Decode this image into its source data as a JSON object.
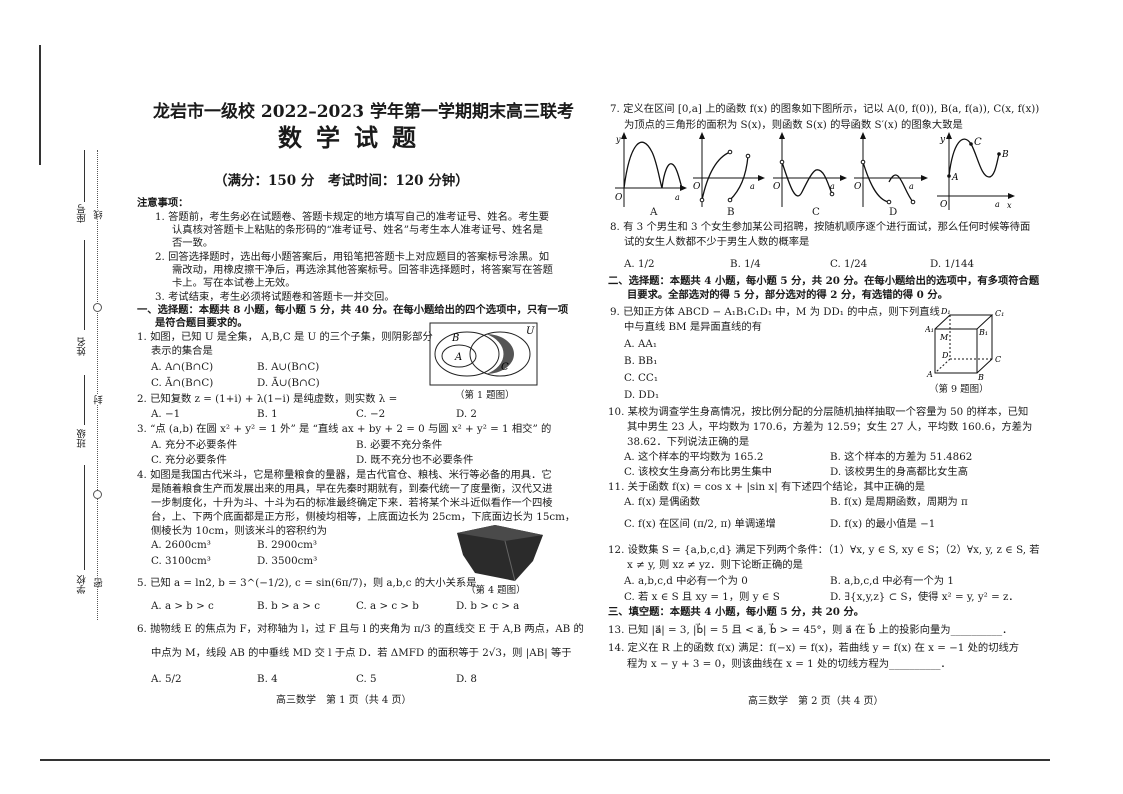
{
  "binding_margin": {
    "labels": [
      "座号",
      "线",
      "姓名",
      "封",
      "班级",
      "密",
      "学校"
    ]
  },
  "page1": {
    "title": "龙岩市一级校 2022–2023 学年第一学期期末高三联考",
    "subject": "数学试题",
    "info": "（满分：150 分　考试时间：120 分钟）",
    "notice_title": "注意事项：",
    "notices": [
      "1. 答题前，考生务必在试题卷、答题卡规定的地方填写自己的准考证号、姓名。考生要",
      "认真核对答题卡上粘贴的条形码的“准考证号、姓名”与考生本人准考证号、姓名是",
      "否一致。",
      "2. 回答选择题时，选出每小题答案后，用铅笔把答题卡上对应题目的答案标号涂黑。如",
      "需改动，用橡皮擦干净后，再选涂其他答案标号。回答非选择题时，将答案写在答题",
      "卡上。写在本试卷上无效。",
      "3. 考试结束，考生必须将试题卷和答题卡一并交回。"
    ],
    "section1": [
      "一、选择题：本题共 8 小题，每小题 5 分，共 40 分。在每小题给出的四个选项中，只有一项",
      "是符合题目要求的。"
    ],
    "q1": {
      "stem": [
        "1. 如图，已知 U 是全集， A,B,C 是 U 的三个子集，则阴影部分",
        "表示的集合是"
      ],
      "options": [
        "A.  A∩(B∩C)",
        "B.  A∪(B∩C)",
        "C.  Ā∩(B∩C)",
        "D.  Ā∪(B∩C)"
      ],
      "caption": "（第 1 题图）",
      "labels": [
        "U",
        "B",
        "A",
        "C"
      ]
    },
    "q2": {
      "stem": "2. 已知复数 z = (1+i) + λ(1−i) 是纯虚数，则实数 λ =",
      "options": [
        "A.  −1",
        "B.  1",
        "C.  −2",
        "D.  2"
      ]
    },
    "q3": {
      "stem": "3. “点 (a,b) 在圆 x² + y² = 1 外” 是 “直线 ax + by + 2 = 0 与圆 x² + y² = 1 相交” 的",
      "options": [
        "A.  充分不必要条件",
        "B.  必要不充分条件",
        "C.  充分必要条件",
        "D.  既不充分也不必要条件"
      ]
    },
    "q4": {
      "stem": [
        "4. 如图是我国古代米斗，它是称量粮食的量器，是古代官仓、粮栈、米行等必备的用具．它",
        "是随着粮食生产而发展出来的用具，早在先秦时期就有，到秦代统一了度量衡，汉代又进",
        "一步制度化，十升为斗、十斗为石的标准最终确定下来．若将某个米斗近似看作一个四棱",
        "台，上、下两个底面都是正方形，侧棱均相等，上底面边长为 25cm，下底面边长为 15cm，",
        "侧棱长为 10cm，则该米斗的容积约为"
      ],
      "options": [
        "A.  2600cm³",
        "B.  2900cm³",
        "C.  3100cm³",
        "D.  3500cm³"
      ],
      "caption": "（第 4 题图）"
    },
    "q5": {
      "stem": "5. 已知 a = ln2, b = 3^(−1/2), c = sin(6π/7)，则 a,b,c 的大小关系是",
      "options": [
        "A.  a > b > c",
        "B.  b > a > c",
        "C.  a > c > b",
        "D.  b > c > a"
      ]
    },
    "q6": {
      "stem": [
        "6. 抛物线 E 的焦点为 F，对称轴为 l，过 F 且与 l 的夹角为 π/3 的直线交 E 于 A,B 两点，AB 的",
        "中点为 M，线段 AB 的中垂线 MD 交 l 于点 D．若 ΔMFD 的面积等于 2√3，则 |AB| 等于"
      ],
      "options": [
        "A.  5/2",
        "B.  4",
        "C.  5",
        "D.  8"
      ]
    },
    "footer": "高三数学　第 1 页（共 4 页）"
  },
  "page2": {
    "q7": {
      "stem": [
        "7. 定义在区间 [0,a] 上的函数 f(x) 的图象如下图所示，记以 A(0, f(0)), B(a, f(a)), C(x, f(x))",
        "为顶点的三角形的面积为 S(x)，则函数 S(x) 的导函数 S′(x) 的图象大致是"
      ],
      "options": [
        "A",
        "B",
        "C",
        "D"
      ],
      "axis": {
        "o": "O",
        "x": "x",
        "y": "y",
        "a": "a"
      },
      "points": [
        "A",
        "B",
        "C"
      ]
    },
    "q8": {
      "stem": [
        "8. 有 3 个男生和 3 个女生参加某公司招聘，按随机顺序逐个进行面试，那么任何时候等待面",
        "试的女生人数都不少于男生人数的概率是"
      ],
      "options": [
        "A.  1/2",
        "B.  1/4",
        "C.  1/24",
        "D.  1/144"
      ]
    },
    "section2": [
      "二、选择题：本题共 4 小题，每小题 5 分，共 20 分。在每小题给出的选项中，有多项符合题",
      "目要求。全部选对的得 5 分，部分选对的得 2 分，有选错的得 0 分。"
    ],
    "q9": {
      "stem": [
        "9. 已知正方体 ABCD − A₁B₁C₁D₁ 中，M 为 DD₁ 的中点，则下列直线",
        "中与直线 BM 是异面直线的有"
      ],
      "options": [
        "A.  AA₁",
        "B.  BB₁",
        "C.  CC₁",
        "D.  DD₁"
      ],
      "caption": "（第 9 题图）",
      "labels": [
        "D₁",
        "C₁",
        "A₁",
        "B₁",
        "M",
        "D",
        "C",
        "A",
        "B"
      ]
    },
    "q10": {
      "stem": [
        "10. 某校为调查学生身高情况，按比例分配的分层随机抽样抽取一个容量为 50 的样本，已知",
        "其中男生 23 人，平均数为 170.6，方差为 12.59；女生 27 人，平均数 160.6，方差为",
        "38.62．下列说法正确的是"
      ],
      "options": [
        "A.  这个样本的平均数为 165.2",
        "B.  这个样本的方差为 51.4862",
        "C.  该校女生身高分布比男生集中",
        "D.  该校男生的身高都比女生高"
      ]
    },
    "q11": {
      "stem": "11. 关于函数 f(x) = cos x + |sin x| 有下述四个结论，其中正确的是",
      "options": [
        "A.  f(x) 是偶函数",
        "B.  f(x) 是周期函数，周期为 π",
        "C.  f(x) 在区间 (π/2, π) 单调递增",
        "D.  f(x) 的最小值是 −1"
      ]
    },
    "q12": {
      "stem": [
        "12. 设数集 S = {a,b,c,d} 满足下列两个条件：（1）∀x, y ∈ S, xy ∈ S；（2）∀x, y, z ∈ S, 若",
        "x ≠ y, 则 xz ≠ yz．则下论断正确的是"
      ],
      "options": [
        "A.  a,b,c,d 中必有一个为 0",
        "B.  a,b,c,d 中必有一个为 1",
        "C.  若 x ∈ S 且 xy = 1，则 y ∈ S",
        "D.  ∃{x,y,z} ⊂ S，使得 x² = y, y² = z．"
      ]
    },
    "section3": "三、填空题：本题共 4 小题，每小题 5 分，共 20 分。",
    "q13": "13. 已知 |a⃗| = 3, |b⃗| = 5 且 < a⃗, b⃗ > = 45°，则 a⃗ 在 b⃗ 上的投影向量为__________．",
    "q14": [
      "14. 定义在 R 上的函数 f(x) 满足：f(−x) = f(x)，若曲线 y = f(x) 在 x = −1 处的切线方",
      "程为 x − y + 3 = 0，则该曲线在 x = 1 处的切线方程为__________．"
    ],
    "footer": "高三数学　第 2 页（共 4 页）"
  }
}
